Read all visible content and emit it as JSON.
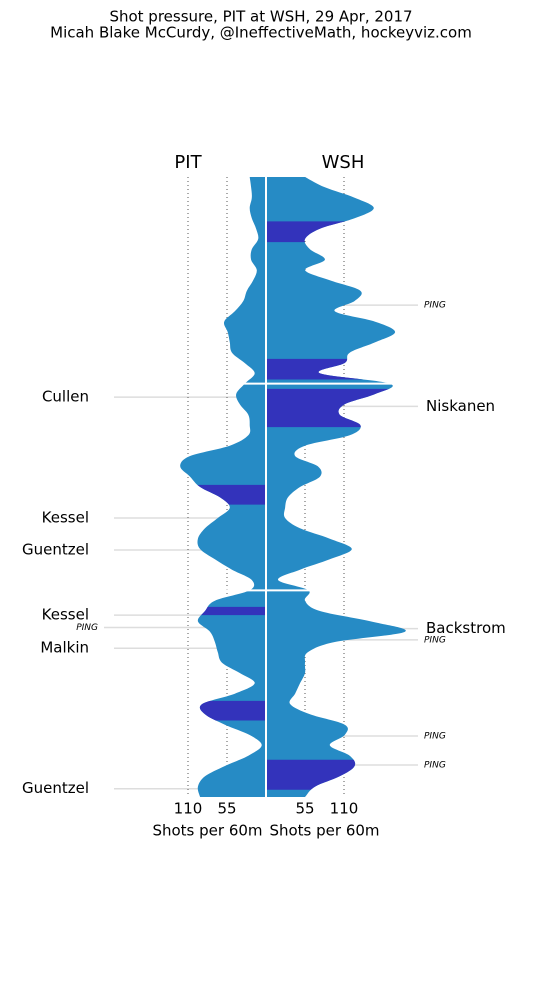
{
  "chart_data": {
    "type": "shot_pressure",
    "title": "Shot pressure, PIT at WSH, 29 Apr, 2017",
    "subtitle": "Micah Blake McCurdy, @IneffectiveMath, hockeyviz.com",
    "x": [
      0,
      1,
      2,
      3,
      4,
      5,
      6,
      7,
      8,
      9,
      10,
      11,
      12,
      13,
      14,
      15,
      16,
      17,
      18,
      19,
      20,
      21,
      22,
      23,
      24,
      25,
      26,
      27,
      28,
      29,
      30,
      31,
      32,
      33,
      34,
      35,
      36,
      37,
      38,
      39,
      40,
      41,
      42,
      43,
      44,
      45,
      46,
      47,
      48,
      49,
      50,
      51,
      52,
      53,
      54,
      55,
      56,
      57,
      58,
      59,
      60
    ],
    "xlim": [
      0,
      60
    ],
    "period_breaks": [
      20,
      40
    ],
    "series": [
      {
        "name": "PIT",
        "side": "left",
        "color": "#268bc5",
        "pp_color": "#3333bb",
        "axis_label": "Shots per 60m",
        "vlim": [
          0,
          220
        ],
        "vticks": [
          110,
          55
        ],
        "values": [
          23,
          21,
          20,
          23,
          20,
          14,
          11,
          20,
          21,
          13,
          18,
          27,
          32,
          44,
          59,
          54,
          51,
          48,
          30,
          16,
          30,
          42,
          37,
          25,
          23,
          25,
          51,
          107,
          121,
          107,
          93,
          65,
          51,
          68,
          86,
          96,
          93,
          72,
          48,
          20,
          23,
          72,
          86,
          96,
          79,
          72,
          68,
          62,
          37,
          16,
          44,
          90,
          86,
          58,
          23,
          6,
          25,
          58,
          86,
          96,
          93
        ],
        "power_play": [
          [
            29.8,
            31.7
          ],
          [
            41.6,
            42.4
          ],
          [
            50.7,
            52.6
          ]
        ],
        "goals": [
          {
            "label": "Cullen",
            "time": 21.3
          },
          {
            "label": "Kessel",
            "time": 33.0
          },
          {
            "label": "Guentzel",
            "time": 36.1
          },
          {
            "label": "Kessel",
            "time": 42.4
          },
          {
            "label": "Malkin",
            "time": 45.6
          },
          {
            "label": "Guentzel",
            "time": 59.2
          }
        ],
        "pings": [
          {
            "label": "PING",
            "time": 43.6
          }
        ]
      },
      {
        "name": "WSH",
        "side": "right",
        "color": "#268bc5",
        "pp_color": "#3333bb",
        "axis_label": "Shots per 60m",
        "vlim": [
          0,
          220
        ],
        "vticks": [
          55,
          110
        ],
        "values": [
          55,
          83,
          125,
          152,
          125,
          76,
          55,
          62,
          83,
          55,
          90,
          133,
          125,
          97,
          154,
          182,
          154,
          118,
          111,
          76,
          175,
          154,
          111,
          104,
          133,
          118,
          55,
          41,
          73,
          76,
          48,
          31,
          27,
          27,
          48,
          90,
          121,
          90,
          48,
          17,
          60,
          55,
          76,
          147,
          196,
          97,
          59,
          55,
          55,
          48,
          41,
          34,
          62,
          111,
          111,
          90,
          118,
          125,
          104,
          69,
          55
        ],
        "power_play": [
          [
            4.3,
            6.3
          ],
          [
            17.6,
            19.6
          ],
          [
            20.5,
            24.2
          ],
          [
            56.4,
            59.3
          ]
        ],
        "goals": [
          {
            "label": "Niskanen",
            "time": 22.2
          },
          {
            "label": "Backstrom",
            "time": 43.7
          }
        ],
        "pings": [
          {
            "label": "PING",
            "time": 12.4
          },
          {
            "label": "PING",
            "time": 44.8
          },
          {
            "label": "PING",
            "time": 54.1
          },
          {
            "label": "PING",
            "time": 56.9
          }
        ]
      }
    ]
  }
}
